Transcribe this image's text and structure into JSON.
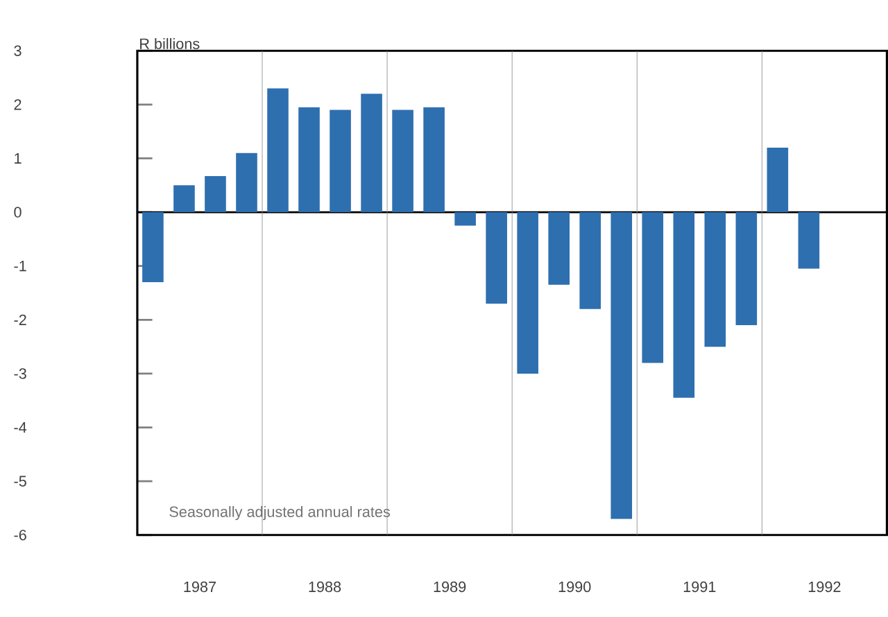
{
  "chart_data": {
    "type": "bar",
    "ylabel": "R billions",
    "x": [
      1986.625,
      1986.875,
      1987.125,
      1987.375,
      1987.625,
      1987.875,
      1988.125,
      1988.375,
      1988.625,
      1988.875,
      1989.125,
      1989.375,
      1989.625,
      1989.875,
      1990.125,
      1990.375,
      1990.625,
      1990.875,
      1991.125,
      1991.375,
      1991.625,
      1991.875
    ],
    "values": [
      -1.3,
      0.5,
      0.67,
      1.1,
      2.3,
      1.95,
      1.9,
      2.2,
      1.9,
      1.95,
      -0.25,
      -1.7,
      -3.0,
      -1.35,
      -1.8,
      -5.7,
      -2.8,
      -3.45,
      -2.5,
      -2.1,
      1.2,
      -1.05
    ],
    "color": "#2e6fb0",
    "xlim": [
      1986.5,
      1992.5
    ],
    "xticks": [
      1987,
      1988,
      1989,
      1990,
      1991,
      1992
    ],
    "ylim": [
      -6,
      3
    ],
    "yticks": [
      -6,
      -5,
      -4,
      -3,
      -2,
      -1,
      0,
      1,
      2,
      3
    ],
    "annotations": [
      "Seasonally adjusted annual rates"
    ],
    "ref_lines": [
      {
        "axis": "y",
        "value": 0,
        "color": "#000000"
      },
      {
        "axis": "x",
        "value": 1987.5,
        "color": "#808080"
      },
      {
        "axis": "x",
        "value": 1988.5,
        "color": "#808080"
      },
      {
        "axis": "x",
        "value": 1989.5,
        "color": "#808080"
      },
      {
        "axis": "x",
        "value": 1990.5,
        "color": "#808080"
      },
      {
        "axis": "x",
        "value": 1991.5,
        "color": "#808080"
      }
    ]
  }
}
